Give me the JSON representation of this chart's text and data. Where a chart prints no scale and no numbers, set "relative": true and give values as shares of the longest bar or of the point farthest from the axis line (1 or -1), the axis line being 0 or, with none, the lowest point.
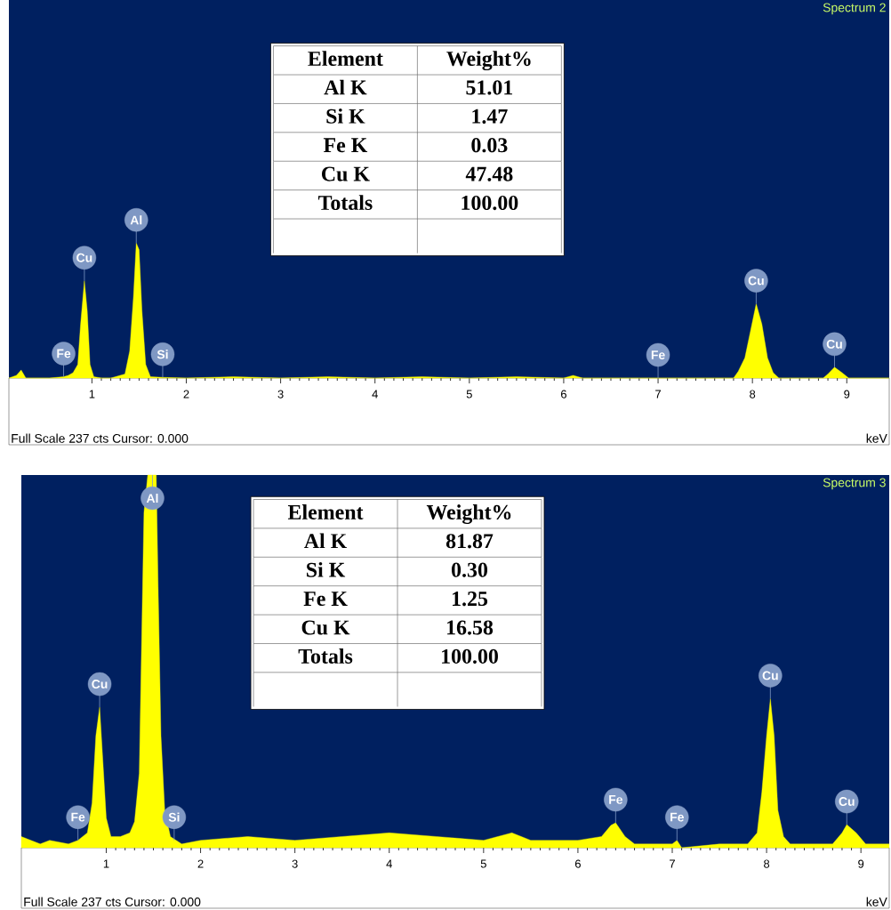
{
  "chart_data": [
    {
      "type": "area",
      "title": "Spectrum 2",
      "xlabel": "keV",
      "relative": true,
      "xlim": [
        0.12,
        9.45
      ],
      "xticks": [
        1,
        2,
        3,
        4,
        5,
        6,
        7,
        8,
        9
      ],
      "x": [
        0.12,
        0.2,
        0.25,
        0.3,
        0.55,
        0.7,
        0.75,
        0.8,
        0.85,
        0.88,
        0.92,
        0.95,
        0.98,
        1.02,
        1.1,
        1.2,
        1.35,
        1.4,
        1.44,
        1.47,
        1.5,
        1.53,
        1.57,
        1.62,
        1.75,
        2.0,
        2.5,
        3.0,
        3.5,
        4.0,
        4.5,
        5.0,
        5.5,
        6.0,
        6.1,
        6.2,
        7.0,
        7.8,
        7.85,
        7.92,
        7.98,
        8.04,
        8.1,
        8.16,
        8.22,
        8.28,
        8.75,
        8.8,
        8.87,
        8.95,
        9.02,
        9.45
      ],
      "series": [
        {
          "color": "#ffff00",
          "values": [
            0,
            0.02,
            0.06,
            0,
            0,
            0.01,
            0.02,
            0.04,
            0.1,
            0.4,
            0.72,
            0.5,
            0.1,
            0.01,
            0,
            0,
            0.03,
            0.2,
            0.6,
            1.0,
            0.95,
            0.5,
            0.1,
            0.01,
            0.005,
            0,
            0.01,
            0,
            0.01,
            0,
            0.01,
            0,
            0.01,
            0,
            0.02,
            0,
            0,
            0,
            0.05,
            0.15,
            0.35,
            0.55,
            0.4,
            0.15,
            0.04,
            0,
            0,
            0.03,
            0.08,
            0.04,
            0,
            0
          ]
        }
      ],
      "annotations": [
        "Full Scale 237 cts Cursor: 0.000",
        "Element",
        "Weight%",
        "Al K",
        "51.01",
        "Si K",
        "1.47",
        "Fe K",
        "0.03",
        "Cu K",
        "47.48",
        "Totals",
        "100.00",
        {
          "text": "Fe",
          "x": 0.7,
          "y": 0.01
        },
        {
          "text": "Cu",
          "x": 0.92,
          "y": 0.72
        },
        {
          "text": "Al",
          "x": 1.47,
          "y": 1.0
        },
        {
          "text": "Si",
          "x": 1.75,
          "y": 0.005
        },
        {
          "text": "Fe",
          "x": 7.0,
          "y": 0
        },
        {
          "text": "Cu",
          "x": 8.04,
          "y": 0.55
        },
        {
          "text": "Cu",
          "x": 8.87,
          "y": 0.08
        }
      ]
    },
    {
      "type": "area",
      "title": "Spectrum 3",
      "xlabel": "keV",
      "relative": true,
      "xlim": [
        0.1,
        9.3
      ],
      "xticks": [
        1,
        2,
        3,
        4,
        5,
        6,
        7,
        8,
        9
      ],
      "x": [
        0.1,
        0.2,
        0.3,
        0.4,
        0.6,
        0.7,
        0.8,
        0.85,
        0.89,
        0.93,
        0.96,
        1.0,
        1.05,
        1.15,
        1.25,
        1.3,
        1.35,
        1.4,
        1.44,
        1.53,
        1.55,
        1.58,
        1.62,
        1.68,
        1.8,
        2.0,
        2.5,
        3.0,
        3.5,
        4.0,
        4.5,
        5.0,
        5.3,
        5.5,
        6.0,
        6.25,
        6.35,
        6.4,
        6.5,
        6.6,
        7.0,
        7.05,
        7.1,
        7.5,
        7.8,
        7.9,
        7.95,
        8.0,
        8.04,
        8.08,
        8.12,
        8.18,
        8.25,
        8.7,
        8.8,
        8.85,
        8.95,
        9.05,
        9.3
      ],
      "series": [
        {
          "color": "#ffff00",
          "values": [
            0.03,
            0.02,
            0.01,
            0.02,
            0.01,
            0.02,
            0.04,
            0.12,
            0.3,
            0.377,
            0.25,
            0.08,
            0.03,
            0.03,
            0.04,
            0.07,
            0.2,
            0.9,
            1.0,
            1.0,
            0.7,
            0.3,
            0.1,
            0.03,
            0.01,
            0.02,
            0.03,
            0.02,
            0.03,
            0.04,
            0.03,
            0.02,
            0.04,
            0.02,
            0.02,
            0.03,
            0.06,
            0.067,
            0.03,
            0.01,
            0.01,
            0.02,
            0,
            0.01,
            0.01,
            0.04,
            0.15,
            0.3,
            0.4,
            0.3,
            0.1,
            0.03,
            0.01,
            0.01,
            0.04,
            0.062,
            0.04,
            0.01,
            0.01
          ]
        }
      ],
      "annotations": [
        "Full Scale 237 cts Cursor: 0.000",
        "Element",
        "Weight%",
        "Al K",
        "81.87",
        "Si K",
        "0.30",
        "Fe K",
        "1.25",
        "Cu K",
        "16.58",
        "Totals",
        "100.00",
        {
          "text": "Fe",
          "x": 0.7,
          "y": 0.02
        },
        {
          "text": "Cu",
          "x": 0.93,
          "y": 0.377
        },
        {
          "text": "Al",
          "x": 1.49,
          "y": 1.0
        },
        {
          "text": "Si",
          "x": 1.72,
          "y": 0.02
        },
        {
          "text": "Fe",
          "x": 6.4,
          "y": 0.067
        },
        {
          "text": "Fe",
          "x": 7.05,
          "y": 0.02
        },
        {
          "text": "Cu",
          "x": 8.04,
          "y": 0.4
        },
        {
          "text": "Cu",
          "x": 8.85,
          "y": 0.062
        }
      ]
    }
  ]
}
